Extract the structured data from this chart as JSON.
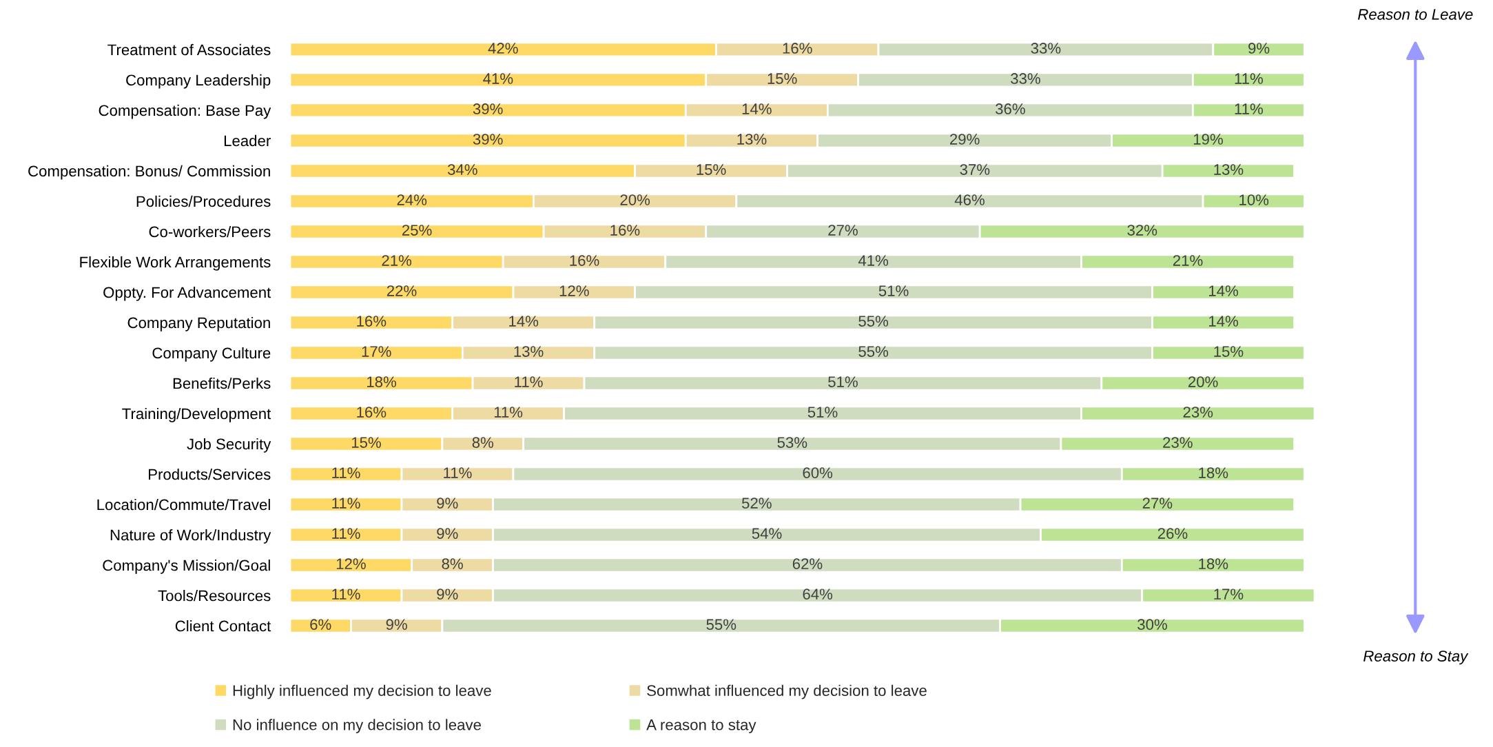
{
  "chart_data": {
    "type": "bar",
    "orientation": "horizontal",
    "stacked": true,
    "tick_labels": "y",
    "legend": "bottom",
    "categories": [
      "Treatment of Associates",
      "Company Leadership",
      "Compensation: Base Pay",
      "Leader",
      "Compensation: Bonus/ Commission",
      "Policies/Procedures",
      "Co-workers/Peers",
      "Flexible Work Arrangements",
      "Oppty. For Advancement",
      "Company Reputation",
      "Company Culture",
      "Benefits/Perks",
      "Training/Development",
      "Job Security",
      "Products/Services",
      "Location/Commute/Travel",
      "Nature of Work/Industry",
      "Company's Mission/Goal",
      "Tools/Resources",
      "Client Contact"
    ],
    "series": [
      {
        "name": "Highly influenced my decision to leave",
        "color": "#ffd966",
        "values": [
          42,
          41,
          39,
          39,
          34,
          24,
          25,
          21,
          22,
          16,
          17,
          18,
          16,
          15,
          11,
          11,
          11,
          12,
          11,
          6
        ],
        "value_labels": [
          "42%",
          "41%",
          "39%",
          "39%",
          "34%",
          "24%",
          "25%",
          "21%",
          "22%",
          "16%",
          "17%",
          "18%",
          "16%",
          "15%",
          "11%",
          "11%",
          "11%",
          "12%",
          "11%",
          "6%"
        ]
      },
      {
        "name": "Somwhat influenced my decision to leave",
        "color": "#eedba4",
        "values": [
          16,
          15,
          14,
          13,
          15,
          20,
          16,
          16,
          12,
          14,
          13,
          11,
          11,
          8,
          11,
          9,
          9,
          8,
          9,
          9
        ],
        "value_labels": [
          "16%",
          "15%",
          "14%",
          "13%",
          "15%",
          "20%",
          "16%",
          "16%",
          "12%",
          "14%",
          "13%",
          "11%",
          "11%",
          "8%",
          "11%",
          "9%",
          "9%",
          "8%",
          "9%",
          "9%"
        ]
      },
      {
        "name": "No influence on my decision to leave",
        "color": "#cfdcbf",
        "values": [
          33,
          33,
          36,
          29,
          37,
          46,
          27,
          41,
          51,
          55,
          55,
          51,
          51,
          53,
          60,
          52,
          54,
          62,
          64,
          55
        ],
        "value_labels": [
          "33%",
          "33%",
          "36%",
          "29%",
          "37%",
          "46%",
          "27%",
          "41%",
          "51%",
          "55%",
          "55%",
          "51%",
          "51%",
          "53%",
          "60%",
          "52%",
          "54%",
          "62%",
          "64%",
          "55%"
        ]
      },
      {
        "name": "A reason to stay",
        "color": "#bde394",
        "values": [
          9,
          11,
          11,
          19,
          13,
          10,
          32,
          21,
          14,
          14,
          15,
          20,
          23,
          23,
          18,
          27,
          26,
          18,
          17,
          30
        ],
        "value_labels": [
          "9%",
          "11%",
          "11%",
          "19%",
          "13%",
          "10%",
          "32%",
          "21%",
          "14%",
          "14%",
          "15%",
          "20%",
          "23%",
          "23%",
          "18%",
          "27%",
          "26%",
          "18%",
          "17%",
          "30%"
        ]
      }
    ],
    "annotations": [
      "Reason to Leave",
      "Reason to Stay"
    ]
  }
}
